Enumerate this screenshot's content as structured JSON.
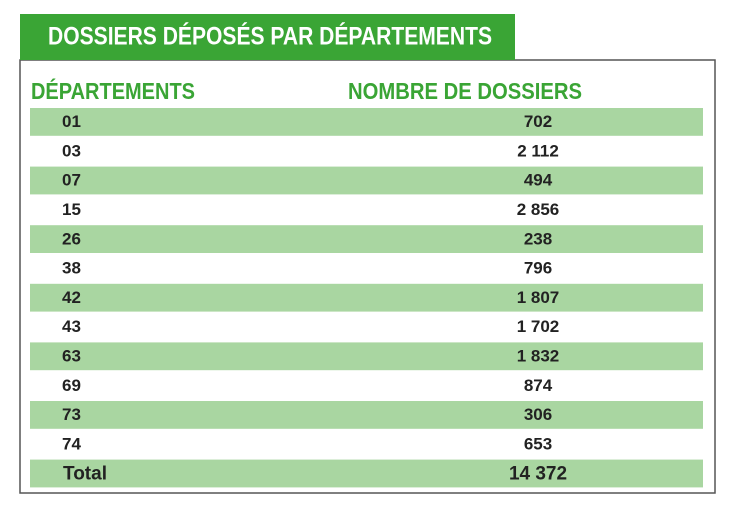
{
  "header": {
    "title": "DOSSIERS DÉPOSÉS PAR DÉPARTEMENTS"
  },
  "table": {
    "columns": [
      "DÉPARTEMENTS",
      "NOMBRE DE DOSSIERS"
    ],
    "rows": [
      [
        "01",
        "702"
      ],
      [
        "03",
        "2 112"
      ],
      [
        "07",
        "494"
      ],
      [
        "15",
        "2 856"
      ],
      [
        "26",
        "238"
      ],
      [
        "38",
        "796"
      ],
      [
        "42",
        "1 807"
      ],
      [
        "43",
        "1 702"
      ],
      [
        "63",
        "1 832"
      ],
      [
        "69",
        "874"
      ],
      [
        "73",
        "306"
      ],
      [
        "74",
        "653"
      ]
    ],
    "total": [
      "Total",
      "14 372"
    ]
  }
}
